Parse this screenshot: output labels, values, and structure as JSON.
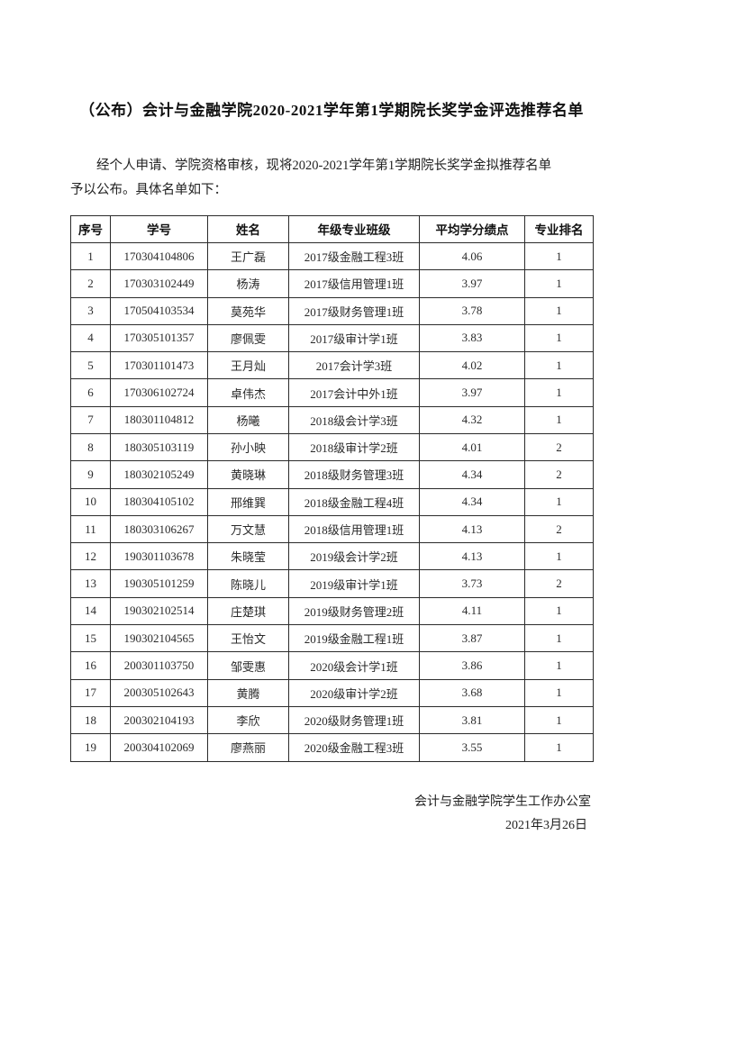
{
  "document": {
    "title": "（公布）会计与金融学院2020-2021学年第1学期院长奖学金评选推荐名单",
    "intro_line1": "经个人申请、学院资格审核，现将2020-2021学年第1学期院长奖学金拟推荐名单",
    "intro_line2": "予以公布。具体名单如下："
  },
  "table": {
    "headers": [
      "序号",
      "学号",
      "姓名",
      "年级专业班级",
      "平均学分绩点",
      "专业排名"
    ],
    "column_keys": [
      "index",
      "student-id",
      "name",
      "class",
      "gpa",
      "rank"
    ],
    "rows": [
      [
        "1",
        "170304104806",
        "王广磊",
        "2017级金融工程3班",
        "4.06",
        "1"
      ],
      [
        "2",
        "170303102449",
        "杨涛",
        "2017级信用管理1班",
        "3.97",
        "1"
      ],
      [
        "3",
        "170504103534",
        "莫苑华",
        "2017级财务管理1班",
        "3.78",
        "1"
      ],
      [
        "4",
        "170305101357",
        "廖佩雯",
        "2017级审计学1班",
        "3.83",
        "1"
      ],
      [
        "5",
        "170301101473",
        "王月灿",
        "2017会计学3班",
        "4.02",
        "1"
      ],
      [
        "6",
        "170306102724",
        "卓伟杰",
        "2017会计中外1班",
        "3.97",
        "1"
      ],
      [
        "7",
        "180301104812",
        "杨曦",
        "2018级会计学3班",
        "4.32",
        "1"
      ],
      [
        "8",
        "180305103119",
        "孙小映",
        "2018级审计学2班",
        "4.01",
        "2"
      ],
      [
        "9",
        "180302105249",
        "黄晓琳",
        "2018级财务管理3班",
        "4.34",
        "2"
      ],
      [
        "10",
        "180304105102",
        "邢维巽",
        "2018级金融工程4班",
        "4.34",
        "1"
      ],
      [
        "11",
        "180303106267",
        "万文慧",
        "2018级信用管理1班",
        "4.13",
        "2"
      ],
      [
        "12",
        "190301103678",
        "朱晓莹",
        "2019级会计学2班",
        "4.13",
        "1"
      ],
      [
        "13",
        "190305101259",
        "陈晓儿",
        "2019级审计学1班",
        "3.73",
        "2"
      ],
      [
        "14",
        "190302102514",
        "庄楚琪",
        "2019级财务管理2班",
        "4.11",
        "1"
      ],
      [
        "15",
        "190302104565",
        "王怡文",
        "2019级金融工程1班",
        "3.87",
        "1"
      ],
      [
        "16",
        "200301103750",
        "邹雯惠",
        "2020级会计学1班",
        "3.86",
        "1"
      ],
      [
        "17",
        "200305102643",
        "黄腾",
        "2020级审计学2班",
        "3.68",
        "1"
      ],
      [
        "18",
        "200302104193",
        "李欣",
        "2020级财务管理1班",
        "3.81",
        "1"
      ],
      [
        "19",
        "200304102069",
        "廖燕丽",
        "2020级金融工程3班",
        "3.55",
        "1"
      ]
    ]
  },
  "footer": {
    "signature": "会计与金融学院学生工作办公室",
    "date": "2021年3月26日"
  }
}
